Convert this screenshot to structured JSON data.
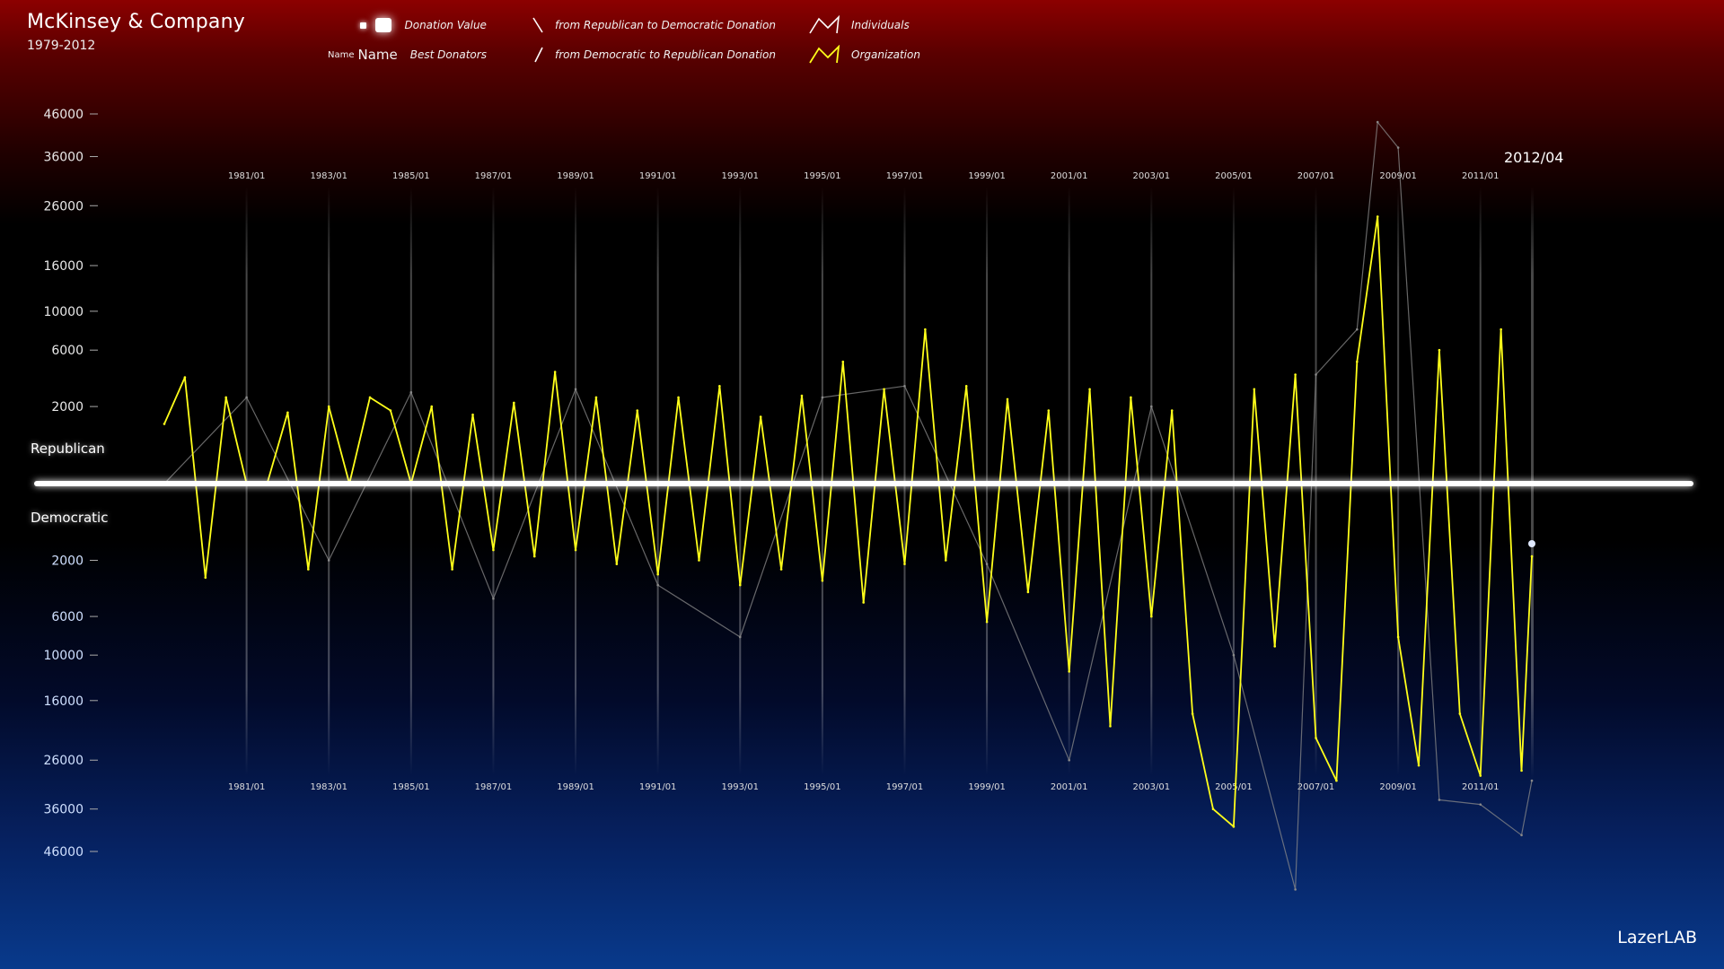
{
  "header": {
    "company": "McKinsey & Company",
    "period": "1979-2012"
  },
  "legend": {
    "donation_value": "Donation Value",
    "name_small": "Name",
    "name_large": "Name",
    "best_donators": "Best Donators",
    "rep_to_dem": "from Republican to Democratic Donation",
    "dem_to_rep": "from Democratic to Republican Donation",
    "individuals": "Individuals",
    "organization": "Organization"
  },
  "labels": {
    "republican": "Republican",
    "democratic": "Democratic",
    "current_date": "2012/04",
    "brand": "LazerLAB"
  },
  "colors": {
    "organization": "#ffff1a",
    "individuals": "#8a8a8a",
    "axis": "#ffffff",
    "republican": "#8c0000",
    "democratic": "#083a8c"
  },
  "icons": {
    "rep_to_dem": "backslash-line-icon",
    "dem_to_rep": "slash-line-icon",
    "individuals": "zigzag-white-icon",
    "organization": "zigzag-yellow-icon"
  },
  "chart_data": {
    "type": "line",
    "title": "McKinsey & Company",
    "subtitle": "1979-2012",
    "x_range": [
      "1979/01",
      "2012/04"
    ],
    "x_ticks": [
      "1981/01",
      "1983/01",
      "1985/01",
      "1987/01",
      "1989/01",
      "1991/01",
      "1993/01",
      "1995/01",
      "1997/01",
      "1999/01",
      "2001/01",
      "2003/01",
      "2005/01",
      "2007/01",
      "2009/01",
      "2011/01"
    ],
    "y_ticks_republican": [
      46000,
      36000,
      26000,
      16000,
      10000,
      6000,
      2000
    ],
    "y_ticks_democratic": [
      2000,
      6000,
      10000,
      16000,
      26000,
      36000,
      46000
    ],
    "y_scale": "sqrt",
    "sign_convention": "positive = Republican, negative = Democratic",
    "series": [
      {
        "name": "Organization",
        "x": [
          "1979/01",
          "1979/07",
          "1980/01",
          "1980/07",
          "1981/01",
          "1981/07",
          "1982/01",
          "1982/07",
          "1983/01",
          "1983/07",
          "1984/01",
          "1984/07",
          "1985/01",
          "1985/07",
          "1986/01",
          "1986/07",
          "1987/01",
          "1987/07",
          "1988/01",
          "1988/07",
          "1989/01",
          "1989/07",
          "1990/01",
          "1990/07",
          "1991/01",
          "1991/07",
          "1992/01",
          "1992/07",
          "1993/01",
          "1993/07",
          "1994/01",
          "1994/07",
          "1995/01",
          "1995/07",
          "1996/01",
          "1996/07",
          "1997/01",
          "1997/07",
          "1998/01",
          "1998/07",
          "1999/01",
          "1999/07",
          "2000/01",
          "2000/07",
          "2001/01",
          "2001/07",
          "2002/01",
          "2002/07",
          "2003/01",
          "2003/07",
          "2004/01",
          "2004/07",
          "2005/01",
          "2005/07",
          "2006/01",
          "2006/07",
          "2007/01",
          "2007/07",
          "2008/01",
          "2008/07",
          "2009/01",
          "2009/07",
          "2010/01",
          "2010/07",
          "2011/01",
          "2011/07",
          "2012/01",
          "2012/04"
        ],
        "values": [
          1200,
          3800,
          -3000,
          2500,
          0,
          0,
          1700,
          -2500,
          2000,
          0,
          2500,
          1800,
          0,
          2000,
          -2500,
          1600,
          -1500,
          2200,
          -1800,
          4200,
          -1500,
          2500,
          -2200,
          1800,
          -2800,
          2500,
          -2000,
          3200,
          -3500,
          1500,
          -2500,
          2600,
          -3200,
          5000,
          -4800,
          3000,
          -2200,
          8000,
          -2000,
          3200,
          -6500,
          2400,
          -4000,
          1800,
          -12000,
          3000,
          -20000,
          2500,
          -6000,
          1800,
          -18000,
          -36000,
          -40000,
          3000,
          -9000,
          4000,
          -22000,
          -30000,
          5000,
          24000,
          -8000,
          -27000,
          6000,
          -18000,
          -29000,
          8000,
          -28000,
          -1800
        ]
      },
      {
        "name": "Individuals",
        "x": [
          "1979/01",
          "1981/01",
          "1983/01",
          "1985/01",
          "1987/01",
          "1989/01",
          "1991/01",
          "1993/01",
          "1995/01",
          "1997/01",
          "1999/01",
          "2001/01",
          "2003/01",
          "2005/01",
          "2006/07",
          "2007/01",
          "2008/01",
          "2008/07",
          "2009/01",
          "2010/01",
          "2011/01",
          "2012/01",
          "2012/04"
        ],
        "values": [
          0,
          2500,
          -2000,
          2800,
          -4500,
          3000,
          -3500,
          -8000,
          2500,
          3200,
          -2200,
          -26000,
          2000,
          -10000,
          -56000,
          4000,
          8000,
          44000,
          38000,
          -34000,
          -35000,
          -42000,
          -30000
        ]
      }
    ]
  }
}
